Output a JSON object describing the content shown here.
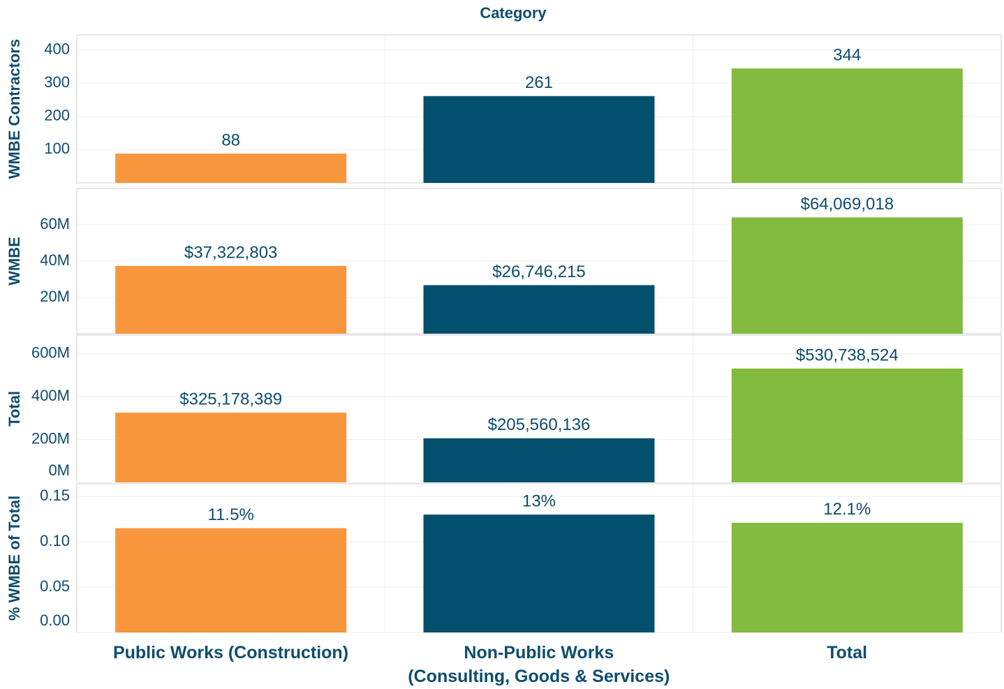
{
  "chart_data": [
    {
      "type": "bar",
      "title": "Category",
      "ylabel": "WMBE Contractors",
      "values": [
        88,
        261,
        344
      ],
      "colors": [
        "#f7963c",
        "#02506e",
        "#82bb3f"
      ],
      "ylim": [
        0,
        445
      ],
      "yticks": [
        100,
        200,
        300,
        400
      ],
      "grid": true
    },
    {
      "type": "bar",
      "ylabel": "WMBE",
      "values": [
        37322803,
        26746215,
        64069018
      ],
      "value_labels": [
        "$37,322,803",
        "$26,746,215",
        "$64,069,018"
      ],
      "colors": [
        "#f7963c",
        "#02506e",
        "#82bb3f"
      ],
      "ylim": [
        0,
        80000000
      ],
      "yticks": [
        {
          "value": 20000000,
          "label": "20M"
        },
        {
          "value": 40000000,
          "label": "40M"
        },
        {
          "value": 60000000,
          "label": "60M"
        }
      ],
      "grid": true
    },
    {
      "type": "bar",
      "ylabel": "Total",
      "values": [
        325178389,
        205560136,
        530738524
      ],
      "value_labels": [
        "$325,178,389",
        "$205,560,136",
        "$530,738,524"
      ],
      "colors": [
        "#f7963c",
        "#02506e",
        "#82bb3f"
      ],
      "ylim": [
        0,
        687000000
      ],
      "yticks": [
        {
          "value": 0,
          "label": "0M"
        },
        {
          "value": 200000000,
          "label": "200M"
        },
        {
          "value": 400000000,
          "label": "400M"
        },
        {
          "value": 600000000,
          "label": "600M"
        }
      ],
      "grid": true
    },
    {
      "type": "bar",
      "ylabel": "% WMBE of Total",
      "values": [
        0.115,
        0.13,
        0.121
      ],
      "value_labels": [
        "11.5%",
        "13%",
        "12.1%"
      ],
      "colors": [
        "#f7963c",
        "#02506e",
        "#82bb3f"
      ],
      "categories": [
        "Public Works (Construction)",
        "Non-Public Works\n(Consulting, Goods & Services)",
        "Total"
      ],
      "ylim": [
        0,
        0.164
      ],
      "yticks": [
        {
          "value": 0,
          "label": "0.00"
        },
        0.05,
        {
          "value": 0.1,
          "label": "0.10"
        },
        0.15
      ],
      "grid": true
    }
  ]
}
